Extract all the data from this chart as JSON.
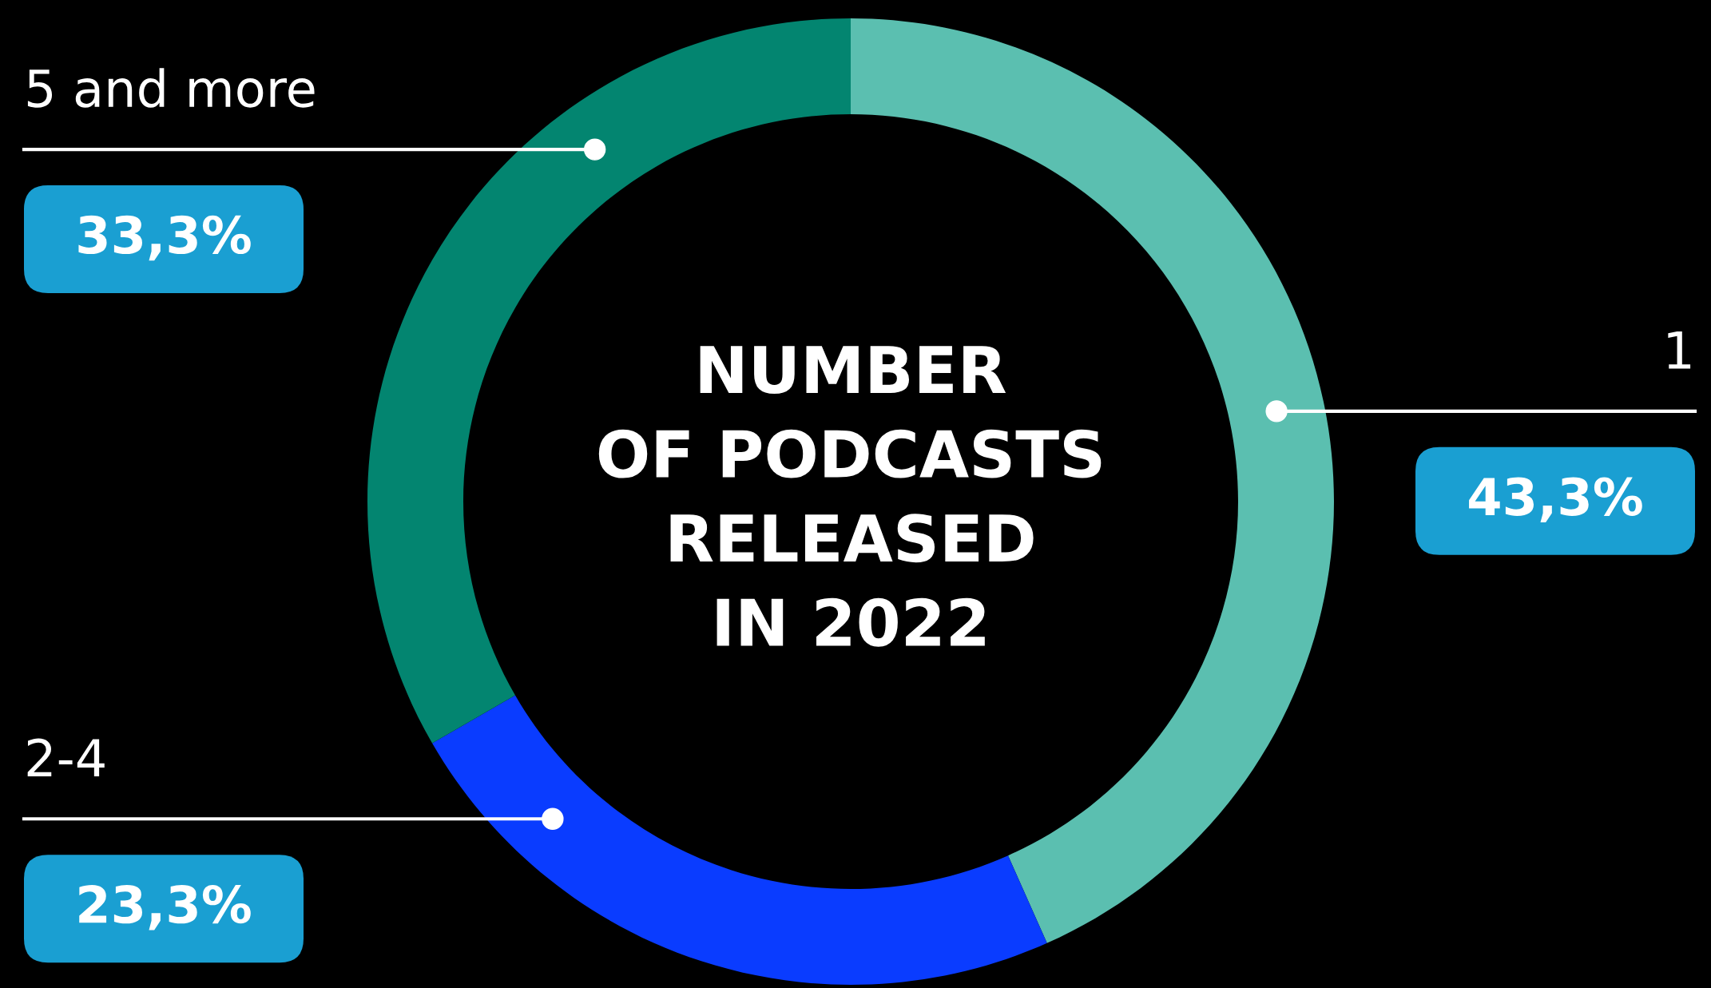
{
  "chart_data": {
    "type": "donut",
    "title": "NUMBER\nOF PODCASTS\nRELEASED\nIN 2022",
    "categories": [
      "1",
      "2-4",
      "5 and more"
    ],
    "values": [
      43.3,
      23.3,
      33.3
    ],
    "colors": [
      "#5bbfb0",
      "#0a3cff",
      "#038570"
    ],
    "value_labels": [
      "43,3%",
      "23,3%",
      "33,3%"
    ]
  }
}
